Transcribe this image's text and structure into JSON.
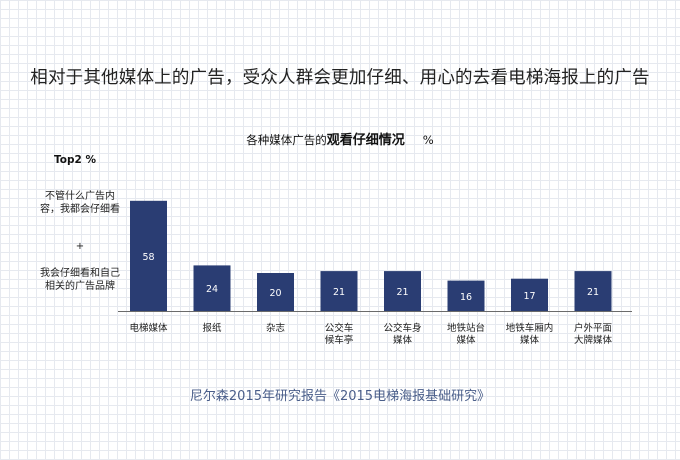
{
  "slide_title": "相对于其他媒体上的广告，受众人群会更加仔细、用心的去看电梯海报上的广告",
  "chart_title_prefix": "各种媒体广告的",
  "chart_title_bold": "观看仔细情况",
  "chart_title_unit": "%",
  "top2_label": "Top2 %",
  "note_line1": "不管什么广告内容，我都会仔细看",
  "note_plus": "+",
  "note_line2": "我会仔细看和自己相关的广告品牌",
  "source": "尼尔森2015年研究报告《2015电梯海报基础研究》",
  "colors": {
    "bar": "#2a3d73",
    "axis": "#6b6b6b"
  },
  "chart_data": {
    "type": "bar",
    "title": "各种媒体广告的观看仔细情况",
    "unit": "%",
    "categories": [
      [
        "电梯媒体"
      ],
      [
        "报纸"
      ],
      [
        "杂志"
      ],
      [
        "公交车",
        "候车亭"
      ],
      [
        "公交车身",
        "媒体"
      ],
      [
        "地铁站台",
        "媒体"
      ],
      [
        "地铁车厢内",
        "媒体"
      ],
      [
        "户外平面",
        "大牌媒体"
      ]
    ],
    "values": [
      58,
      24,
      20,
      21,
      21,
      16,
      17,
      21
    ]
  }
}
